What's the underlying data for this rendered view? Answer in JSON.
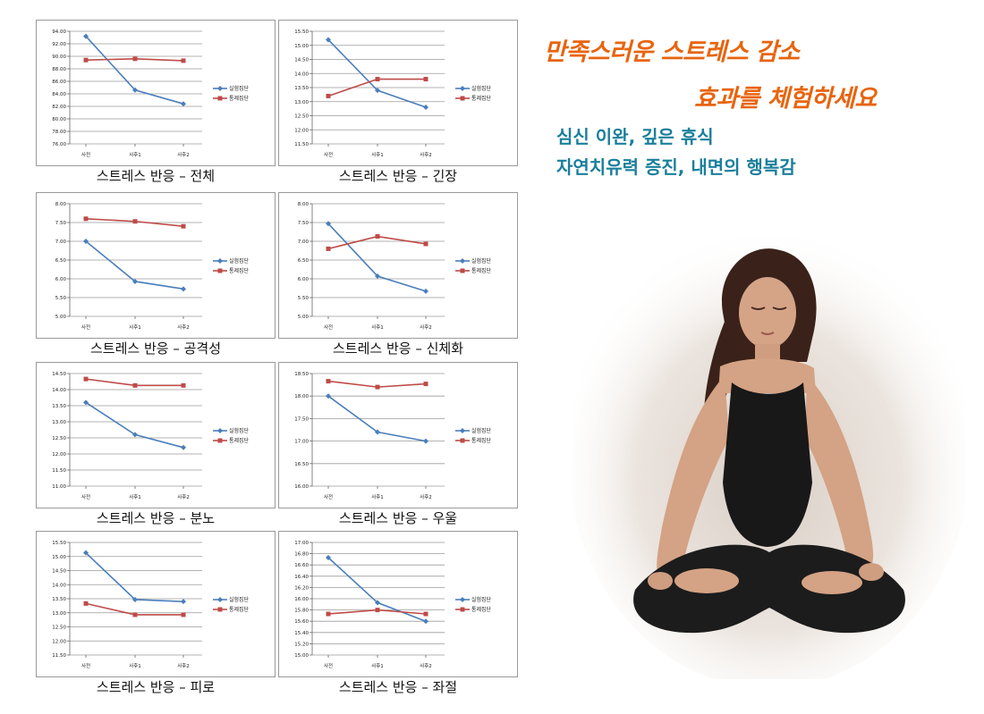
{
  "headline": {
    "line1": "만족스러운 스트레스 감소",
    "line2": "효과를 체험하세요",
    "color": "#e8640e"
  },
  "subheadline": {
    "line1": "심신 이완, 깊은 휴식",
    "line2": "자연치유력 증진, 내면의 행복감",
    "color": "#1a7f9c"
  },
  "photo": {
    "icon": "meditation-woman-illustration"
  },
  "series_colors": {
    "실험집단": "#4a7ebb",
    "통제집단": "#be4b48"
  },
  "chart_data": [
    {
      "type": "line",
      "caption": "스트레스 반응 – 전체",
      "categories": [
        "사전",
        "사후1",
        "사후2"
      ],
      "ylim": [
        76,
        94
      ],
      "yticks": [
        "76.00",
        "78.00",
        "80.00",
        "82.00",
        "84.00",
        "86.00",
        "88.00",
        "90.00",
        "92.00",
        "94.00"
      ],
      "series": [
        {
          "name": "실험집단",
          "values": [
            93.2,
            84.6,
            82.4
          ]
        },
        {
          "name": "통제집단",
          "values": [
            89.4,
            89.6,
            89.3
          ]
        }
      ],
      "legend": "right",
      "grid": true
    },
    {
      "type": "line",
      "caption": "스트레스 반응 – 긴장",
      "categories": [
        "사전",
        "사후1",
        "사후2"
      ],
      "ylim": [
        11.5,
        15.5
      ],
      "yticks": [
        "11.50",
        "12.00",
        "12.50",
        "13.00",
        "13.50",
        "14.00",
        "14.50",
        "15.00",
        "15.50"
      ],
      "series": [
        {
          "name": "실험집단",
          "values": [
            15.2,
            13.4,
            12.8
          ]
        },
        {
          "name": "통제집단",
          "values": [
            13.2,
            13.8,
            13.8
          ]
        }
      ],
      "legend": "right",
      "grid": true
    },
    {
      "type": "line",
      "caption": "스트레스 반응 – 공격성",
      "categories": [
        "사전",
        "사후1",
        "사후2"
      ],
      "ylim": [
        5,
        8
      ],
      "yticks": [
        "5.00",
        "5.50",
        "6.00",
        "6.50",
        "7.00",
        "7.50",
        "8.00"
      ],
      "series": [
        {
          "name": "실험집단",
          "values": [
            7.0,
            5.93,
            5.73
          ]
        },
        {
          "name": "통제집단",
          "values": [
            7.6,
            7.53,
            7.4
          ]
        }
      ],
      "legend": "right",
      "grid": true
    },
    {
      "type": "line",
      "caption": "스트레스 반응 – 신체화",
      "categories": [
        "사전",
        "사후1",
        "사후2"
      ],
      "ylim": [
        5,
        8
      ],
      "yticks": [
        "5.00",
        "5.50",
        "6.00",
        "6.50",
        "7.00",
        "7.50",
        "8.00"
      ],
      "series": [
        {
          "name": "실험집단",
          "values": [
            7.47,
            6.07,
            5.67
          ]
        },
        {
          "name": "통제집단",
          "values": [
            6.8,
            7.13,
            6.93
          ]
        }
      ],
      "legend": "right",
      "grid": true
    },
    {
      "type": "line",
      "caption": "스트레스 반응 – 분노",
      "categories": [
        "사전",
        "사후1",
        "사후2"
      ],
      "ylim": [
        11,
        14.5
      ],
      "yticks": [
        "11.00",
        "11.50",
        "12.00",
        "12.50",
        "13.00",
        "13.50",
        "14.00",
        "14.50"
      ],
      "series": [
        {
          "name": "실험집단",
          "values": [
            13.6,
            12.6,
            12.2
          ]
        },
        {
          "name": "통제집단",
          "values": [
            14.33,
            14.13,
            14.13
          ]
        }
      ],
      "legend": "right",
      "grid": true
    },
    {
      "type": "line",
      "caption": "스트레스 반응 – 우울",
      "categories": [
        "사전",
        "사후1",
        "사후2"
      ],
      "ylim": [
        16,
        18.5
      ],
      "yticks": [
        "16.00",
        "16.50",
        "17.00",
        "17.50",
        "18.00",
        "18.50"
      ],
      "series": [
        {
          "name": "실험집단",
          "values": [
            18.0,
            17.2,
            17.0
          ]
        },
        {
          "name": "통제집단",
          "values": [
            18.33,
            18.2,
            18.27
          ]
        }
      ],
      "legend": "right",
      "grid": true
    },
    {
      "type": "line",
      "caption": "스트레스 반응 – 피로",
      "categories": [
        "사전",
        "사후1",
        "사후2"
      ],
      "ylim": [
        11.5,
        15.5
      ],
      "yticks": [
        "11.50",
        "12.00",
        "12.50",
        "13.00",
        "13.50",
        "14.00",
        "14.50",
        "15.00",
        "15.50"
      ],
      "series": [
        {
          "name": "실험집단",
          "values": [
            15.13,
            13.47,
            13.4
          ]
        },
        {
          "name": "통제집단",
          "values": [
            13.33,
            12.93,
            12.93
          ]
        }
      ],
      "legend": "right",
      "grid": true
    },
    {
      "type": "line",
      "caption": "스트레스 반응 – 좌절",
      "categories": [
        "사전",
        "사후1",
        "사후2"
      ],
      "ylim": [
        15,
        17
      ],
      "yticks": [
        "15.00",
        "15.20",
        "15.40",
        "15.60",
        "15.80",
        "16.00",
        "16.20",
        "16.40",
        "16.60",
        "16.80",
        "17.00"
      ],
      "series": [
        {
          "name": "실험집단",
          "values": [
            16.73,
            15.93,
            15.6
          ]
        },
        {
          "name": "통제집단",
          "values": [
            15.73,
            15.8,
            15.73
          ]
        }
      ],
      "legend": "right",
      "grid": true
    }
  ]
}
